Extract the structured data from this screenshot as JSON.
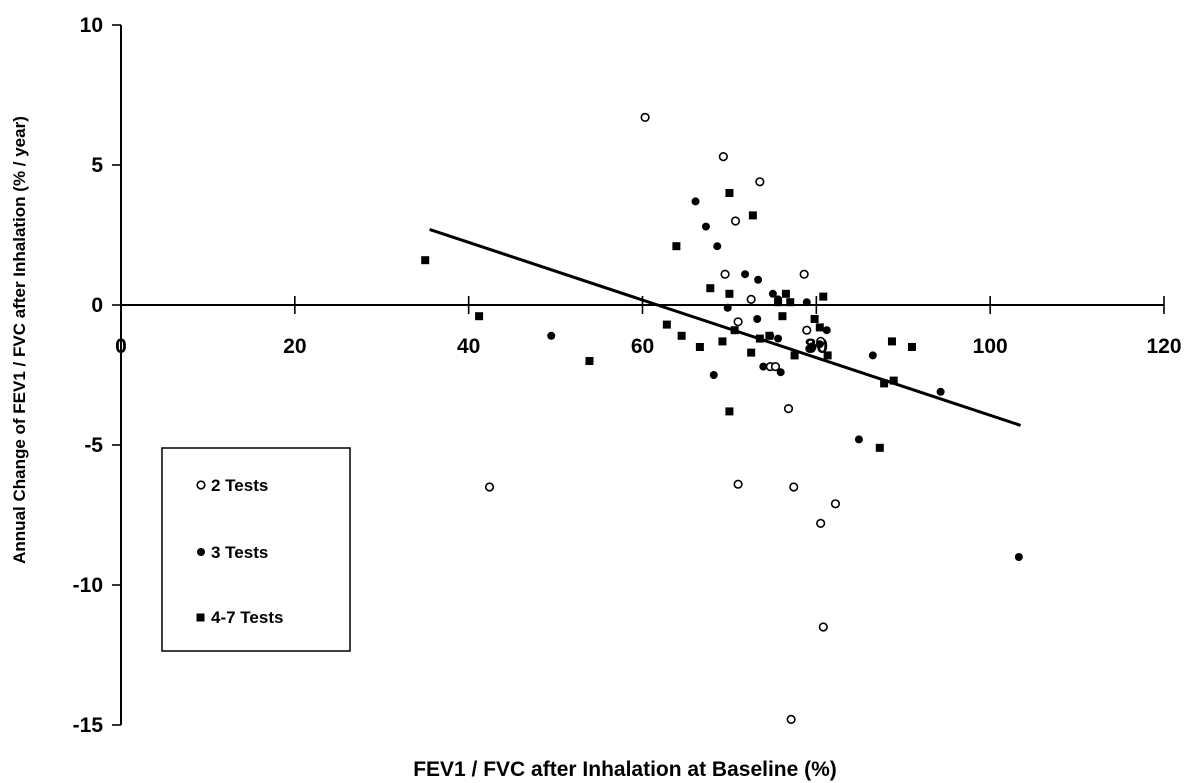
{
  "chart_data": {
    "type": "scatter",
    "xlabel": "FEV1 / FVC  after Inhalation at Baseline (%)",
    "ylabel": "Annual Change of FEV1 / FVC after Inhalation (% / year)",
    "xlim": [
      0,
      120
    ],
    "ylim": [
      -15,
      10
    ],
    "x_ticks": [
      "0",
      "20",
      "40",
      "60",
      "80",
      "100",
      "120"
    ],
    "y_ticks": [
      "10",
      "5",
      "0",
      "-5",
      "-10",
      "-15"
    ],
    "x_tick_values": [
      0,
      20,
      40,
      60,
      80,
      100,
      120
    ],
    "y_tick_values": [
      10,
      5,
      0,
      -5,
      -10,
      -15
    ],
    "grid": false,
    "legend_position": "lower-left",
    "series": [
      {
        "name": "2 Tests",
        "marker": "open-circle",
        "points": [
          [
            60.3,
            6.7
          ],
          [
            69.3,
            5.3
          ],
          [
            73.5,
            4.4
          ],
          [
            70.7,
            3.0
          ],
          [
            69.5,
            1.1
          ],
          [
            72.5,
            0.2
          ],
          [
            78.6,
            1.1
          ],
          [
            71.0,
            -0.6
          ],
          [
            78.9,
            -0.9
          ],
          [
            74.7,
            -2.2
          ],
          [
            75.3,
            -2.2
          ],
          [
            76.8,
            -3.7
          ],
          [
            71.0,
            -6.4
          ],
          [
            77.4,
            -6.5
          ],
          [
            82.2,
            -7.1
          ],
          [
            80.5,
            -7.8
          ],
          [
            42.4,
            -6.5
          ],
          [
            80.8,
            -11.5
          ],
          [
            77.1,
            -14.8
          ],
          [
            79.5,
            -1.5
          ],
          [
            80.5,
            -1.3
          ]
        ]
      },
      {
        "name": "3 Tests",
        "marker": "filled-circle",
        "points": [
          [
            66.1,
            3.7
          ],
          [
            67.3,
            2.8
          ],
          [
            68.6,
            2.1
          ],
          [
            71.8,
            1.1
          ],
          [
            73.3,
            0.9
          ],
          [
            75.0,
            0.4
          ],
          [
            75.6,
            0.2
          ],
          [
            78.9,
            0.1
          ],
          [
            73.2,
            -0.5
          ],
          [
            69.8,
            -0.1
          ],
          [
            74.7,
            -1.1
          ],
          [
            75.6,
            -1.2
          ],
          [
            79.4,
            -1.5
          ],
          [
            81.2,
            -0.9
          ],
          [
            80.4,
            -1.4
          ],
          [
            73.9,
            -2.2
          ],
          [
            75.9,
            -2.4
          ],
          [
            68.2,
            -2.5
          ],
          [
            49.5,
            -1.1
          ],
          [
            86.5,
            -1.8
          ],
          [
            94.3,
            -3.1
          ],
          [
            84.9,
            -4.8
          ],
          [
            103.3,
            -9.0
          ]
        ]
      },
      {
        "name": "4-7 Tests",
        "marker": "filled-square",
        "points": [
          [
            35.0,
            1.6
          ],
          [
            41.2,
            -0.4
          ],
          [
            53.9,
            -2.0
          ],
          [
            62.8,
            -0.7
          ],
          [
            63.9,
            2.1
          ],
          [
            64.5,
            -1.1
          ],
          [
            66.6,
            -1.5
          ],
          [
            67.8,
            0.6
          ],
          [
            70.0,
            4.0
          ],
          [
            72.7,
            3.2
          ],
          [
            70.0,
            0.4
          ],
          [
            69.2,
            -1.3
          ],
          [
            70.6,
            -0.9
          ],
          [
            72.5,
            -1.7
          ],
          [
            73.5,
            -1.2
          ],
          [
            74.6,
            -1.1
          ],
          [
            75.6,
            0.1
          ],
          [
            76.1,
            -0.4
          ],
          [
            76.5,
            0.4
          ],
          [
            77.0,
            0.1
          ],
          [
            77.5,
            -1.8
          ],
          [
            79.8,
            -0.5
          ],
          [
            80.4,
            -0.8
          ],
          [
            80.8,
            0.3
          ],
          [
            81.3,
            -1.8
          ],
          [
            87.3,
            -5.1
          ],
          [
            87.8,
            -2.8
          ],
          [
            88.7,
            -1.3
          ],
          [
            88.9,
            -2.7
          ],
          [
            91.0,
            -1.5
          ],
          [
            70.0,
            -3.8
          ]
        ]
      }
    ],
    "trendline": {
      "type": "linear",
      "x": [
        35.5,
        103.5
      ],
      "y": [
        2.7,
        -4.3
      ]
    }
  }
}
